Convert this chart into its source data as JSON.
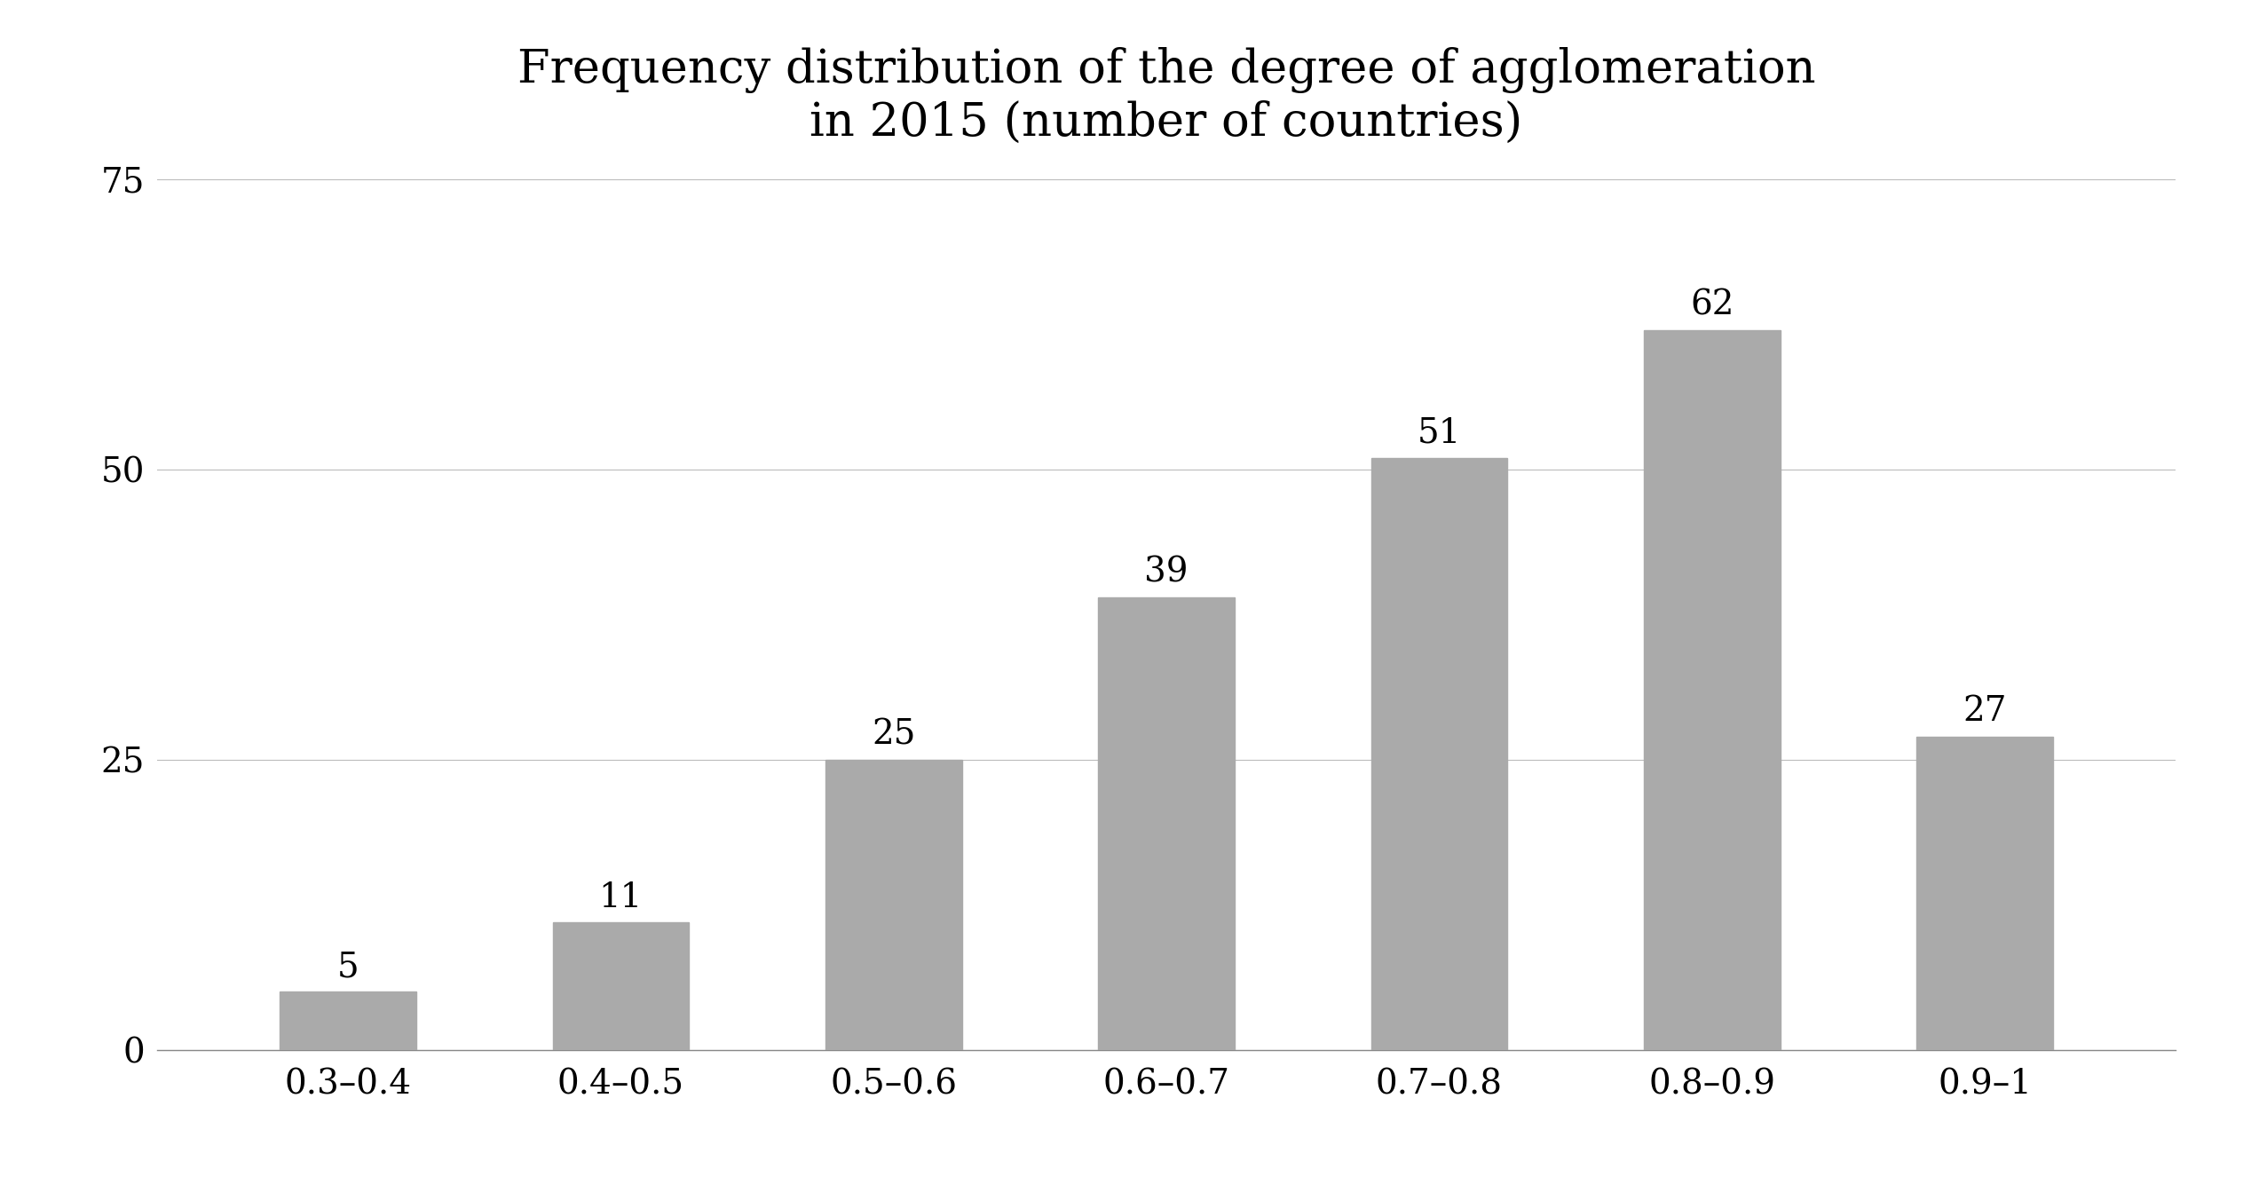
{
  "title": "Frequency distribution of the degree of agglomeration\nin 2015 (number of countries)",
  "categories": [
    "0.3–0.4",
    "0.4–0.5",
    "0.5–0.6",
    "0.6–0.7",
    "0.7–0.8",
    "0.8–0.9",
    "0.9–1"
  ],
  "values": [
    5,
    11,
    25,
    39,
    51,
    62,
    27
  ],
  "bar_color": "#aaaaaa",
  "bar_edgecolor": "#aaaaaa",
  "ylim": [
    0,
    75
  ],
  "yticks": [
    0,
    25,
    50,
    75
  ],
  "title_fontsize": 38,
  "tick_fontsize": 28,
  "annotation_fontsize": 28,
  "background_color": "#ffffff",
  "grid_color": "#bbbbbb",
  "bar_width": 0.5
}
